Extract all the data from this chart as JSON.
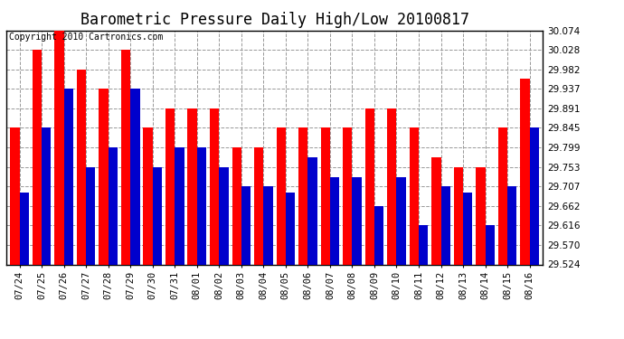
{
  "title": "Barometric Pressure Daily High/Low 20100817",
  "copyright": "Copyright 2010 Cartronics.com",
  "dates": [
    "07/24",
    "07/25",
    "07/26",
    "07/27",
    "07/28",
    "07/29",
    "07/30",
    "07/31",
    "08/01",
    "08/02",
    "08/03",
    "08/04",
    "08/05",
    "08/06",
    "08/07",
    "08/08",
    "08/09",
    "08/10",
    "08/11",
    "08/12",
    "08/13",
    "08/14",
    "08/15",
    "08/16"
  ],
  "highs": [
    29.845,
    30.028,
    30.074,
    29.982,
    29.937,
    30.028,
    29.845,
    29.891,
    29.891,
    29.891,
    29.799,
    29.799,
    29.845,
    29.845,
    29.845,
    29.845,
    29.891,
    29.891,
    29.845,
    29.776,
    29.753,
    29.753,
    29.845,
    29.96
  ],
  "lows": [
    29.693,
    29.845,
    29.937,
    29.753,
    29.799,
    29.937,
    29.753,
    29.799,
    29.799,
    29.753,
    29.707,
    29.707,
    29.693,
    29.776,
    29.73,
    29.73,
    29.662,
    29.73,
    29.616,
    29.707,
    29.693,
    29.616,
    29.707,
    29.845
  ],
  "high_color": "#ff0000",
  "low_color": "#0000cc",
  "bg_color": "#ffffff",
  "grid_color": "#999999",
  "ylim_min": 29.524,
  "ylim_max": 30.074,
  "yticks": [
    29.524,
    29.57,
    29.616,
    29.662,
    29.707,
    29.753,
    29.799,
    29.845,
    29.891,
    29.937,
    29.982,
    30.028,
    30.074
  ],
  "title_fontsize": 12,
  "copyright_fontsize": 7,
  "tick_fontsize": 7.5,
  "bar_width": 0.42
}
